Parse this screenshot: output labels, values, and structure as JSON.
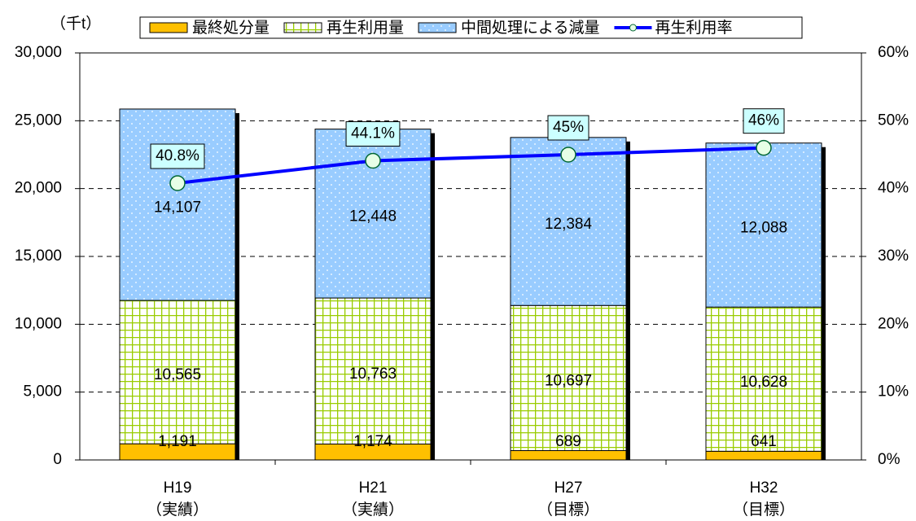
{
  "chart_data": {
    "type": "bar",
    "stacked": true,
    "ylabel": "（千t）",
    "categories": [
      "H19",
      "H21",
      "H27",
      "H32"
    ],
    "category_sublabels": [
      "（実績）",
      "（実績）",
      "（目標）",
      "（目標）"
    ],
    "series": [
      {
        "name": "最終処分量",
        "color": "#ffc000",
        "values": [
          1191,
          1174,
          689,
          641
        ],
        "value_labels": [
          "1,191",
          "1,174",
          "689",
          "641"
        ]
      },
      {
        "name": "再生利用量",
        "color": "#99cc00",
        "values": [
          10565,
          10763,
          10697,
          10628
        ],
        "value_labels": [
          "10,565",
          "10,763",
          "10,697",
          "10,628"
        ]
      },
      {
        "name": "中間処理による減量",
        "color": "#99ccff",
        "values": [
          14107,
          12448,
          12384,
          12088
        ],
        "value_labels": [
          "14,107",
          "12,448",
          "12,384",
          "12,088"
        ]
      },
      {
        "name": "再生利用率",
        "color": "#0000ff",
        "type": "line",
        "axis": "y2",
        "values": [
          40.8,
          44.1,
          45,
          46
        ],
        "value_labels": [
          "40.8%",
          "44.1%",
          "45%",
          "46%"
        ]
      }
    ],
    "ylim": [
      0,
      30000
    ],
    "yticks": [
      0,
      {
        "value": 5000,
        "label": "5,000"
      },
      {
        "value": 10000,
        "label": "10,000"
      },
      {
        "value": 15000,
        "label": "15,000"
      },
      {
        "value": 20000,
        "label": "20,000"
      },
      {
        "value": 25000,
        "label": "25,000"
      },
      {
        "value": 30000,
        "label": "30,000"
      }
    ],
    "y2lim": [
      0,
      60
    ],
    "y2ticks": [
      {
        "value": 0,
        "label": "0%"
      },
      {
        "value": 10,
        "label": "10%"
      },
      {
        "value": 20,
        "label": "20%"
      },
      {
        "value": 30,
        "label": "30%"
      },
      {
        "value": 40,
        "label": "40%"
      },
      {
        "value": 50,
        "label": "50%"
      },
      {
        "value": 60,
        "label": "60%"
      }
    ],
    "grid": true,
    "legend": "top"
  }
}
